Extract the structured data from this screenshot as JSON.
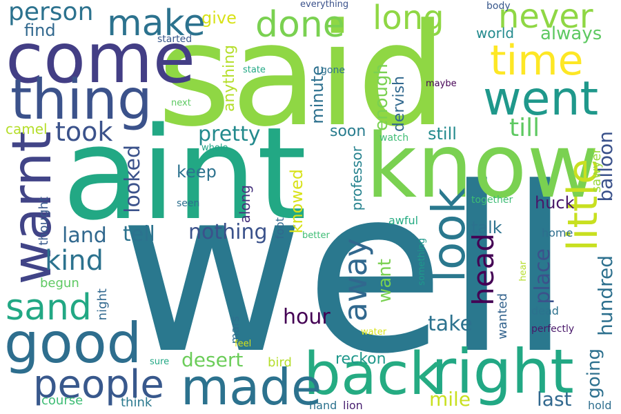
{
  "words": [
    {
      "text": "well",
      "color": "#2a788e"
    },
    {
      "text": "said",
      "color": "#8fd744"
    },
    {
      "text": "aint",
      "color": "#22a884"
    },
    {
      "text": "know",
      "color": "#7ad151"
    },
    {
      "text": "come",
      "color": "#433e85"
    },
    {
      "text": "right",
      "color": "#22a884"
    },
    {
      "text": "back",
      "color": "#25ab82"
    },
    {
      "text": "good",
      "color": "#2e6e8e"
    },
    {
      "text": "warnt",
      "color": "#414487"
    },
    {
      "text": "thing",
      "color": "#3b528b"
    },
    {
      "text": "made",
      "color": "#2c728e"
    },
    {
      "text": "look",
      "color": "#2a788e"
    },
    {
      "text": "went",
      "color": "#1f988b"
    },
    {
      "text": "little",
      "color": "#c8e020"
    },
    {
      "text": "people",
      "color": "#38588c"
    },
    {
      "text": "time",
      "color": "#fde725"
    },
    {
      "text": "done",
      "color": "#7ad151"
    },
    {
      "text": "long",
      "color": "#8fd744"
    },
    {
      "text": "make",
      "color": "#2c728e"
    },
    {
      "text": "sand",
      "color": "#22a884"
    },
    {
      "text": "never",
      "color": "#8fd744"
    },
    {
      "text": "away",
      "color": "#31688e"
    },
    {
      "text": "head",
      "color": "#440154"
    },
    {
      "text": "kind",
      "color": "#2c728e"
    },
    {
      "text": "took",
      "color": "#3b528b"
    },
    {
      "text": "person",
      "color": "#2c728e"
    },
    {
      "text": "pretty",
      "color": "#238a8d"
    },
    {
      "text": "till",
      "color": "#5ec962"
    },
    {
      "text": "hundred",
      "color": "#2d708e"
    },
    {
      "text": "balloon",
      "color": "#3b528b"
    },
    {
      "text": "tell",
      "color": "#2c728e"
    },
    {
      "text": "nothing",
      "color": "#3b528b"
    },
    {
      "text": "place",
      "color": "#3b528b"
    },
    {
      "text": "land",
      "color": "#31688e"
    },
    {
      "text": "looked",
      "color": "#3b528b"
    },
    {
      "text": "enough",
      "color": "#7ad151"
    },
    {
      "text": "desert",
      "color": "#6ccd5a"
    },
    {
      "text": "hour",
      "color": "#440154"
    },
    {
      "text": "take",
      "color": "#2c728e"
    },
    {
      "text": "going",
      "color": "#2d708e"
    },
    {
      "text": "always",
      "color": "#5ec962"
    },
    {
      "text": "mile",
      "color": "#c8e020"
    },
    {
      "text": "last",
      "color": "#31688e"
    },
    {
      "text": "reckon",
      "color": "#1f988b"
    },
    {
      "text": "want",
      "color": "#7ad151"
    },
    {
      "text": "huck",
      "color": "#481769"
    },
    {
      "text": "talk",
      "color": "#2c728e"
    },
    {
      "text": "minute",
      "color": "#2d708e"
    },
    {
      "text": "still",
      "color": "#238a8d"
    },
    {
      "text": "soon",
      "color": "#287c8e"
    },
    {
      "text": "anything",
      "color": "#b5de2b"
    },
    {
      "text": "dervish",
      "color": "#31688e"
    },
    {
      "text": "knowed",
      "color": "#d8e219"
    },
    {
      "text": "keep",
      "color": "#2c728e"
    },
    {
      "text": "find",
      "color": "#31688e"
    },
    {
      "text": "give",
      "color": "#d8e219"
    },
    {
      "text": "world",
      "color": "#238a8d"
    },
    {
      "text": "professor",
      "color": "#26828e"
    },
    {
      "text": "along",
      "color": "#46337e"
    },
    {
      "text": "sawyer",
      "color": "#9bd93c"
    },
    {
      "text": "camel",
      "color": "#b5de2b"
    },
    {
      "text": "wanted",
      "color": "#33638d"
    },
    {
      "text": "course",
      "color": "#3dbc74"
    },
    {
      "text": "think",
      "color": "#2a788e"
    },
    {
      "text": "bird",
      "color": "#b5de2b"
    },
    {
      "text": "night",
      "color": "#31688e"
    },
    {
      "text": "begun",
      "color": "#5ec962"
    },
    {
      "text": "thought",
      "color": "#38588c"
    },
    {
      "text": "mars",
      "color": "#2e6e8e"
    },
    {
      "text": "awful",
      "color": "#25ab82"
    },
    {
      "text": "foot",
      "color": "#31688e"
    },
    {
      "text": "dead",
      "color": "#2c728e"
    },
    {
      "text": "home",
      "color": "#2e6e8e"
    },
    {
      "text": "hand",
      "color": "#2c728e"
    },
    {
      "text": "lion",
      "color": "#481f70"
    },
    {
      "text": "hold",
      "color": "#2e6e8e"
    },
    {
      "text": "perfectly",
      "color": "#481769"
    },
    {
      "text": "together",
      "color": "#3dbc74"
    },
    {
      "text": "seen",
      "color": "#2d708e"
    },
    {
      "text": "gone",
      "color": "#2d708e"
    },
    {
      "text": "body",
      "color": "#38588c"
    },
    {
      "text": "started",
      "color": "#38588c"
    },
    {
      "text": "watch",
      "color": "#3dbc74"
    },
    {
      "text": "hear",
      "color": "#b5de2b"
    },
    {
      "text": "something",
      "color": "#1f988b"
    },
    {
      "text": "everything",
      "color": "#3b528b"
    },
    {
      "text": "state",
      "color": "#22a884"
    },
    {
      "text": "maybe",
      "color": "#440154"
    },
    {
      "text": "next",
      "color": "#5ec962"
    },
    {
      "text": "whole",
      "color": "#20a386"
    },
    {
      "text": "better",
      "color": "#3dbc74"
    },
    {
      "text": "water",
      "color": "#d8e219"
    },
    {
      "text": "feel",
      "color": "#d8e219"
    },
    {
      "text": "sure",
      "color": "#22a884"
    }
  ]
}
